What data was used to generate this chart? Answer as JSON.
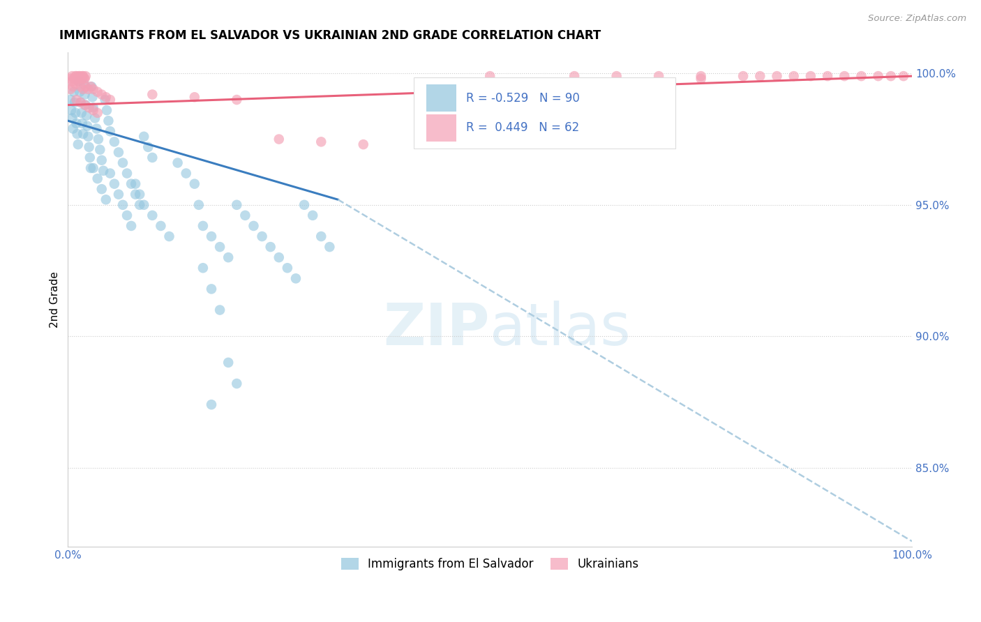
{
  "title": "IMMIGRANTS FROM EL SALVADOR VS UKRAINIAN 2ND GRADE CORRELATION CHART",
  "source": "Source: ZipAtlas.com",
  "ylabel": "2nd Grade",
  "R_blue": -0.529,
  "N_blue": 90,
  "R_pink": 0.449,
  "N_pink": 62,
  "blue_color": "#92c5de",
  "pink_color": "#f4a0b5",
  "blue_line_color": "#3a7dbf",
  "pink_line_color": "#e8607a",
  "dashed_color": "#aecde0",
  "watermark_color": "#cde4f0",
  "legend_label_1": "Immigrants from El Salvador",
  "legend_label_2": "Ukrainians",
  "xlim": [
    0.0,
    1.0
  ],
  "ylim": [
    0.82,
    1.008
  ],
  "ytick_vals": [
    0.85,
    0.9,
    0.95,
    1.0
  ],
  "ytick_labels": [
    "85.0%",
    "90.0%",
    "95.0%",
    "100.0%"
  ],
  "blue_scatter": [
    [
      0.003,
      0.99
    ],
    [
      0.004,
      0.986
    ],
    [
      0.005,
      0.983
    ],
    [
      0.006,
      0.979
    ],
    [
      0.007,
      0.993
    ],
    [
      0.008,
      0.989
    ],
    [
      0.009,
      0.985
    ],
    [
      0.01,
      0.981
    ],
    [
      0.011,
      0.977
    ],
    [
      0.012,
      0.973
    ],
    [
      0.013,
      0.997
    ],
    [
      0.014,
      0.993
    ],
    [
      0.015,
      0.989
    ],
    [
      0.016,
      0.985
    ],
    [
      0.017,
      0.981
    ],
    [
      0.018,
      0.977
    ],
    [
      0.019,
      0.996
    ],
    [
      0.02,
      0.992
    ],
    [
      0.021,
      0.988
    ],
    [
      0.022,
      0.984
    ],
    [
      0.023,
      0.98
    ],
    [
      0.024,
      0.976
    ],
    [
      0.025,
      0.972
    ],
    [
      0.026,
      0.968
    ],
    [
      0.027,
      0.964
    ],
    [
      0.028,
      0.995
    ],
    [
      0.029,
      0.991
    ],
    [
      0.03,
      0.987
    ],
    [
      0.032,
      0.983
    ],
    [
      0.034,
      0.979
    ],
    [
      0.036,
      0.975
    ],
    [
      0.038,
      0.971
    ],
    [
      0.04,
      0.967
    ],
    [
      0.042,
      0.963
    ],
    [
      0.044,
      0.99
    ],
    [
      0.046,
      0.986
    ],
    [
      0.048,
      0.982
    ],
    [
      0.05,
      0.978
    ],
    [
      0.055,
      0.974
    ],
    [
      0.06,
      0.97
    ],
    [
      0.065,
      0.966
    ],
    [
      0.07,
      0.962
    ],
    [
      0.075,
      0.958
    ],
    [
      0.08,
      0.954
    ],
    [
      0.085,
      0.95
    ],
    [
      0.09,
      0.976
    ],
    [
      0.095,
      0.972
    ],
    [
      0.1,
      0.968
    ],
    [
      0.03,
      0.964
    ],
    [
      0.035,
      0.96
    ],
    [
      0.04,
      0.956
    ],
    [
      0.045,
      0.952
    ],
    [
      0.05,
      0.962
    ],
    [
      0.055,
      0.958
    ],
    [
      0.06,
      0.954
    ],
    [
      0.065,
      0.95
    ],
    [
      0.07,
      0.946
    ],
    [
      0.075,
      0.942
    ],
    [
      0.08,
      0.958
    ],
    [
      0.085,
      0.954
    ],
    [
      0.09,
      0.95
    ],
    [
      0.1,
      0.946
    ],
    [
      0.11,
      0.942
    ],
    [
      0.12,
      0.938
    ],
    [
      0.13,
      0.966
    ],
    [
      0.14,
      0.962
    ],
    [
      0.15,
      0.958
    ],
    [
      0.155,
      0.95
    ],
    [
      0.16,
      0.942
    ],
    [
      0.17,
      0.938
    ],
    [
      0.18,
      0.934
    ],
    [
      0.19,
      0.93
    ],
    [
      0.2,
      0.95
    ],
    [
      0.21,
      0.946
    ],
    [
      0.22,
      0.942
    ],
    [
      0.23,
      0.938
    ],
    [
      0.24,
      0.934
    ],
    [
      0.25,
      0.93
    ],
    [
      0.26,
      0.926
    ],
    [
      0.27,
      0.922
    ],
    [
      0.28,
      0.95
    ],
    [
      0.29,
      0.946
    ],
    [
      0.3,
      0.938
    ],
    [
      0.31,
      0.934
    ],
    [
      0.16,
      0.926
    ],
    [
      0.17,
      0.918
    ],
    [
      0.18,
      0.91
    ],
    [
      0.19,
      0.89
    ],
    [
      0.2,
      0.882
    ],
    [
      0.17,
      0.874
    ]
  ],
  "pink_scatter": [
    [
      0.003,
      0.998
    ],
    [
      0.005,
      0.999
    ],
    [
      0.007,
      0.998
    ],
    [
      0.009,
      0.999
    ],
    [
      0.011,
      0.998
    ],
    [
      0.013,
      0.999
    ],
    [
      0.015,
      0.998
    ],
    [
      0.017,
      0.999
    ],
    [
      0.019,
      0.998
    ],
    [
      0.021,
      0.999
    ],
    [
      0.005,
      0.997
    ],
    [
      0.008,
      0.998
    ],
    [
      0.01,
      0.999
    ],
    [
      0.012,
      0.998
    ],
    [
      0.014,
      0.999
    ],
    [
      0.016,
      0.998
    ],
    [
      0.018,
      0.999
    ],
    [
      0.02,
      0.998
    ],
    [
      0.003,
      0.994
    ],
    [
      0.006,
      0.995
    ],
    [
      0.009,
      0.996
    ],
    [
      0.012,
      0.997
    ],
    [
      0.015,
      0.995
    ],
    [
      0.018,
      0.994
    ],
    [
      0.021,
      0.995
    ],
    [
      0.024,
      0.994
    ],
    [
      0.027,
      0.995
    ],
    [
      0.03,
      0.994
    ],
    [
      0.035,
      0.993
    ],
    [
      0.04,
      0.992
    ],
    [
      0.045,
      0.991
    ],
    [
      0.05,
      0.99
    ],
    [
      0.01,
      0.99
    ],
    [
      0.015,
      0.989
    ],
    [
      0.02,
      0.988
    ],
    [
      0.025,
      0.987
    ],
    [
      0.03,
      0.986
    ],
    [
      0.035,
      0.985
    ],
    [
      0.1,
      0.992
    ],
    [
      0.15,
      0.991
    ],
    [
      0.2,
      0.99
    ],
    [
      0.25,
      0.975
    ],
    [
      0.3,
      0.974
    ],
    [
      0.35,
      0.973
    ],
    [
      0.5,
      0.999
    ],
    [
      0.6,
      0.999
    ],
    [
      0.65,
      0.999
    ],
    [
      0.7,
      0.999
    ],
    [
      0.75,
      0.999
    ],
    [
      0.8,
      0.999
    ],
    [
      0.82,
      0.999
    ],
    [
      0.84,
      0.999
    ],
    [
      0.86,
      0.999
    ],
    [
      0.88,
      0.999
    ],
    [
      0.9,
      0.999
    ],
    [
      0.92,
      0.999
    ],
    [
      0.94,
      0.999
    ],
    [
      0.96,
      0.999
    ],
    [
      0.975,
      0.999
    ],
    [
      0.99,
      0.999
    ],
    [
      0.65,
      0.975
    ],
    [
      0.75,
      0.998
    ]
  ],
  "blue_trendline_solid": [
    [
      0.0,
      0.982
    ],
    [
      0.32,
      0.952
    ]
  ],
  "blue_trendline_dashed": [
    [
      0.32,
      0.952
    ],
    [
      1.0,
      0.822
    ]
  ],
  "pink_trendline": [
    [
      0.0,
      0.988
    ],
    [
      1.0,
      0.999
    ]
  ]
}
